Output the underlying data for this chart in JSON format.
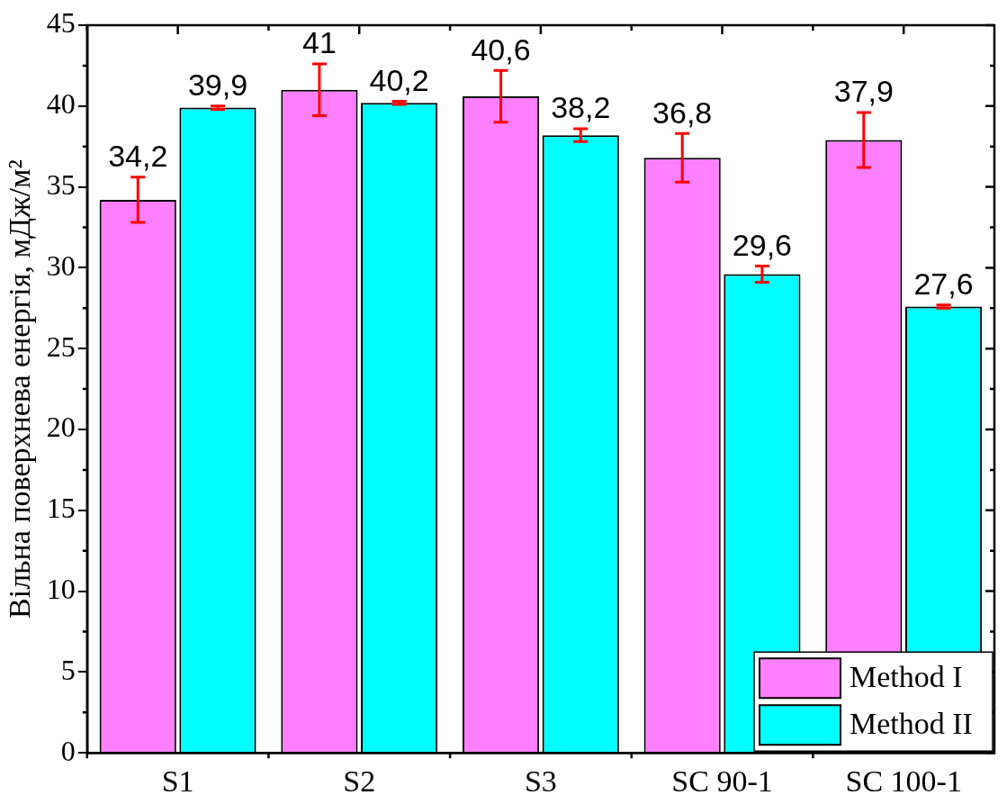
{
  "chart_data": {
    "type": "bar",
    "ylabel": "Вільна поверхнева енергія, мДж/м²",
    "categories": [
      "S1",
      "S2",
      "S3",
      "SC 90-1",
      "SC 100-1"
    ],
    "series": [
      {
        "name": "Method I",
        "color": "#ff80ff",
        "values": [
          34.2,
          41,
          40.6,
          36.8,
          37.9
        ],
        "errors": [
          1.4,
          1.6,
          1.6,
          1.5,
          1.7
        ],
        "value_labels": [
          "34,2",
          "41",
          "40,6",
          "36,8",
          "37,9"
        ]
      },
      {
        "name": "Method II",
        "color": "#00ffff",
        "values": [
          39.9,
          40.2,
          38.2,
          29.6,
          27.6
        ],
        "errors": [
          0.1,
          0.1,
          0.4,
          0.5,
          0.1
        ],
        "value_labels": [
          "39,9",
          "40,2",
          "38,2",
          "29,6",
          "27,6"
        ]
      }
    ],
    "ylim": [
      0,
      45
    ],
    "yticks": [
      0,
      5,
      10,
      15,
      20,
      25,
      30,
      35,
      40,
      45
    ],
    "grid": false,
    "legend": "bottom right"
  }
}
